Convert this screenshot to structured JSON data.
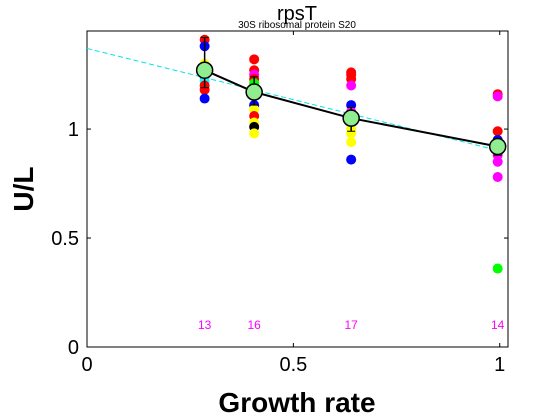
{
  "chart_data": {
    "type": "scatter",
    "title": "rpsT",
    "subtitle": "30S ribosomal protein S20",
    "xlabel": "Growth rate",
    "ylabel": "U/L",
    "xlim": [
      0,
      1.02
    ],
    "ylim": [
      0,
      1.45
    ],
    "xticks": [
      0,
      0.5,
      1
    ],
    "xtick_labels": [
      "0",
      "0.5",
      "1"
    ],
    "yticks": [
      0,
      0.5,
      1
    ],
    "ytick_labels": [
      "0",
      "0.5",
      "1"
    ],
    "grid": false,
    "legend": "none",
    "fit_line": {
      "color": "#00e5e5",
      "style": "dashed",
      "x": [
        0,
        1
      ],
      "y": [
        1.37,
        0.9
      ]
    },
    "replicate_points": [
      {
        "x": 0.285,
        "y": 1.41,
        "color": "#ff0000"
      },
      {
        "x": 0.285,
        "y": 1.38,
        "color": "#0000ff"
      },
      {
        "x": 0.285,
        "y": 1.3,
        "color": "#ffff00"
      },
      {
        "x": 0.285,
        "y": 1.27,
        "color": "#ff00ff"
      },
      {
        "x": 0.285,
        "y": 1.24,
        "color": "#ff00ff"
      },
      {
        "x": 0.285,
        "y": 1.22,
        "color": "#00ffff"
      },
      {
        "x": 0.285,
        "y": 1.2,
        "color": "#ff0000"
      },
      {
        "x": 0.285,
        "y": 1.18,
        "color": "#ff0000"
      },
      {
        "x": 0.285,
        "y": 1.14,
        "color": "#0000ff"
      },
      {
        "x": 0.285,
        "y": 1.26,
        "color": "#00ff00"
      },
      {
        "x": 0.405,
        "y": 1.32,
        "color": "#ff0000"
      },
      {
        "x": 0.405,
        "y": 1.27,
        "color": "#ff0000"
      },
      {
        "x": 0.405,
        "y": 1.25,
        "color": "#ff00ff"
      },
      {
        "x": 0.405,
        "y": 1.23,
        "color": "#ff0000"
      },
      {
        "x": 0.405,
        "y": 1.2,
        "color": "#00ffff"
      },
      {
        "x": 0.405,
        "y": 1.18,
        "color": "#ff00ff"
      },
      {
        "x": 0.405,
        "y": 1.15,
        "color": "#ff00ff"
      },
      {
        "x": 0.405,
        "y": 1.11,
        "color": "#0000ff"
      },
      {
        "x": 0.405,
        "y": 1.09,
        "color": "#ffff00"
      },
      {
        "x": 0.405,
        "y": 1.06,
        "color": "#ff0000"
      },
      {
        "x": 0.405,
        "y": 1.03,
        "color": "#ffff00"
      },
      {
        "x": 0.405,
        "y": 1.01,
        "color": "#000000"
      },
      {
        "x": 0.405,
        "y": 0.98,
        "color": "#ffff00"
      },
      {
        "x": 0.405,
        "y": 1.21,
        "color": "#00ff00"
      },
      {
        "x": 0.405,
        "y": 1.16,
        "color": "#00ff00"
      },
      {
        "x": 0.64,
        "y": 1.26,
        "color": "#ff0000"
      },
      {
        "x": 0.64,
        "y": 1.25,
        "color": "#ff0000"
      },
      {
        "x": 0.64,
        "y": 1.23,
        "color": "#ff0000"
      },
      {
        "x": 0.64,
        "y": 1.2,
        "color": "#ff00ff"
      },
      {
        "x": 0.64,
        "y": 1.11,
        "color": "#0000ff"
      },
      {
        "x": 0.64,
        "y": 1.08,
        "color": "#ff00ff"
      },
      {
        "x": 0.64,
        "y": 1.06,
        "color": "#000000"
      },
      {
        "x": 0.64,
        "y": 1.03,
        "color": "#ff0000"
      },
      {
        "x": 0.64,
        "y": 1.0,
        "color": "#ffff00"
      },
      {
        "x": 0.64,
        "y": 0.98,
        "color": "#ffff00"
      },
      {
        "x": 0.64,
        "y": 0.94,
        "color": "#ffff00"
      },
      {
        "x": 0.64,
        "y": 0.86,
        "color": "#0000ff"
      },
      {
        "x": 0.64,
        "y": 1.05,
        "color": "#00ff00"
      },
      {
        "x": 0.995,
        "y": 1.16,
        "color": "#ff0000"
      },
      {
        "x": 0.995,
        "y": 1.15,
        "color": "#ff00ff"
      },
      {
        "x": 0.995,
        "y": 0.99,
        "color": "#ff0000"
      },
      {
        "x": 0.995,
        "y": 0.95,
        "color": "#0000ff"
      },
      {
        "x": 0.995,
        "y": 0.91,
        "color": "#ff0000"
      },
      {
        "x": 0.995,
        "y": 0.9,
        "color": "#000000"
      },
      {
        "x": 0.995,
        "y": 0.88,
        "color": "#ff00ff"
      },
      {
        "x": 0.995,
        "y": 0.85,
        "color": "#ff00ff"
      },
      {
        "x": 0.995,
        "y": 0.78,
        "color": "#ff00ff"
      },
      {
        "x": 0.995,
        "y": 0.36,
        "color": "#00ff00"
      }
    ],
    "mean_series": {
      "color": "#000000",
      "marker_fill": "#90ee90",
      "x": [
        0.285,
        0.405,
        0.64,
        0.995
      ],
      "y": [
        1.27,
        1.17,
        1.05,
        0.92
      ],
      "err_low": [
        1.19,
        1.11,
        0.99,
        0.88
      ],
      "err_high": [
        1.42,
        1.24,
        1.1,
        0.95
      ]
    },
    "counts": {
      "color": "#ff00ff",
      "x": [
        0.285,
        0.405,
        0.64,
        0.995
      ],
      "y": 0.1,
      "labels": [
        "13",
        "16",
        "17",
        "14"
      ]
    }
  }
}
